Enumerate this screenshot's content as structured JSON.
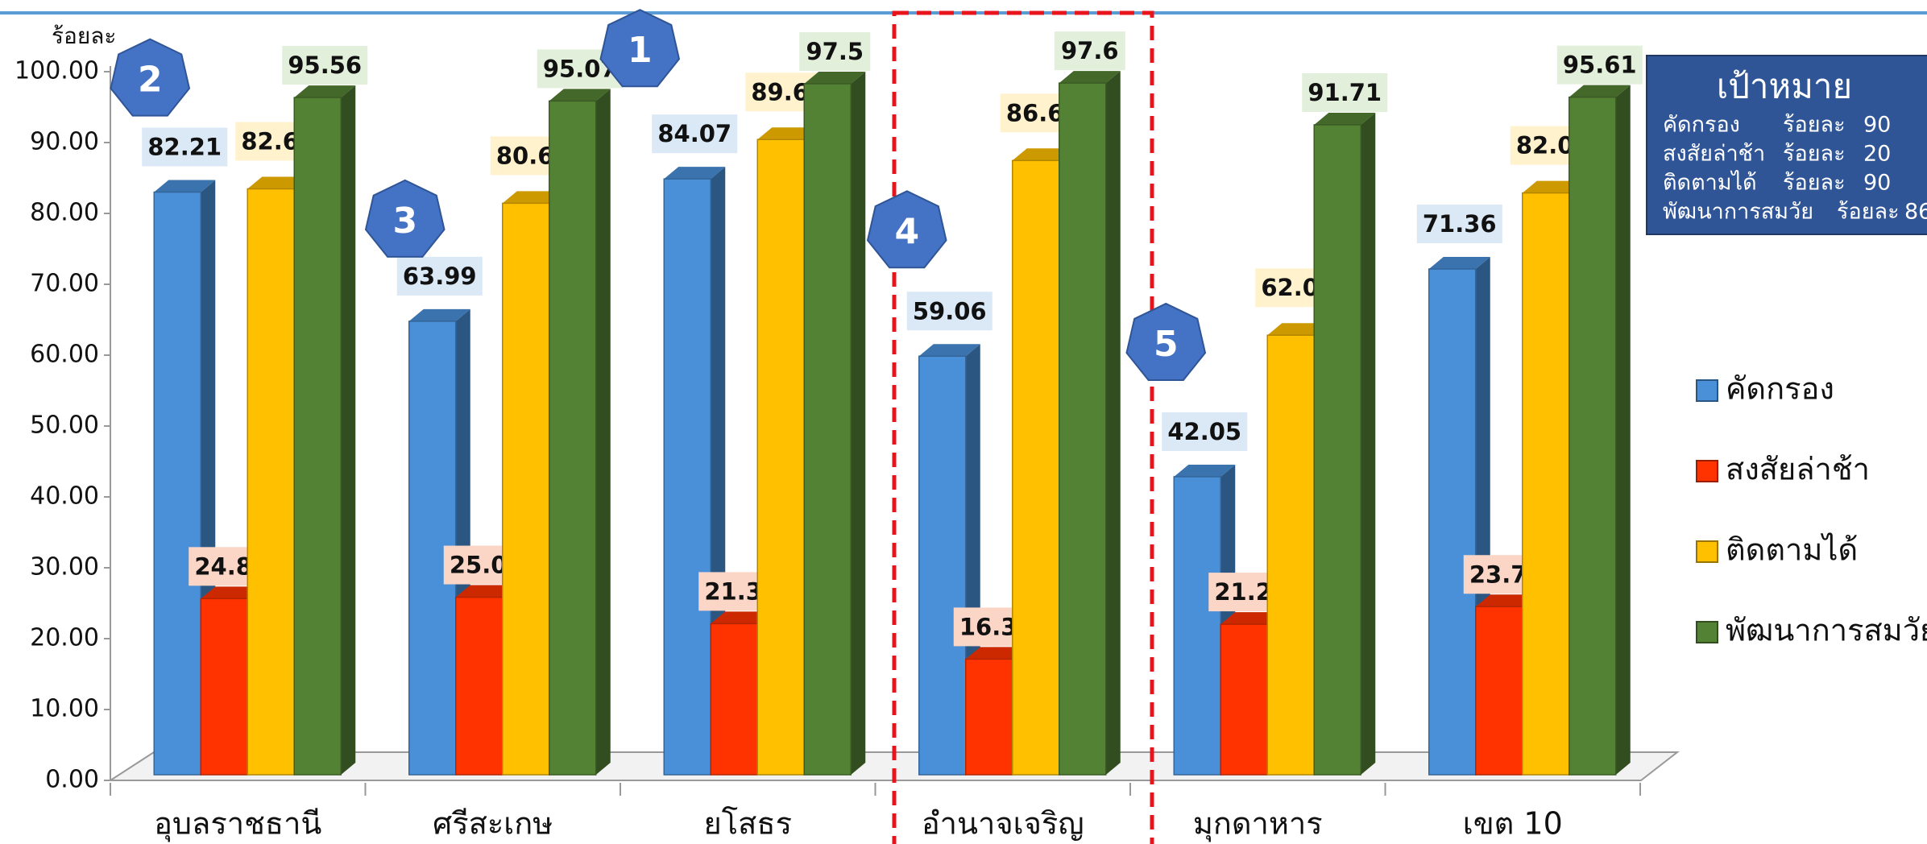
{
  "chart_data": {
    "type": "bar3d",
    "ylabel": "ร้อยละ",
    "categories": [
      "อุบลราชธานี",
      "ศรีสะเกษ",
      "ยโสธร",
      "อำนาจเจริญ",
      "มุกดาหาร",
      "เขต 10"
    ],
    "series": [
      {
        "name": "คัดกรอง",
        "color": "#4a90d9",
        "values": [
          82.21,
          63.99,
          84.07,
          59.06,
          42.05,
          71.36
        ]
      },
      {
        "name": "สงสัยล่าช้า",
        "color": "#ff3300",
        "values": [
          24.85,
          25.05,
          21.32,
          16.32,
          21.24,
          23.72
        ]
      },
      {
        "name": "ติดตามได้",
        "color": "#ffc000",
        "values": [
          82.67,
          80.64,
          89.63,
          86.67,
          62.02,
          82.09
        ]
      },
      {
        "name": "พัฒนาการสมวัย",
        "color": "#548235",
        "values": [
          95.56,
          95.07,
          97.5,
          97.6,
          91.71,
          95.61
        ]
      }
    ],
    "ylim": [
      0,
      100
    ],
    "yticks": [
      {
        "value": 0,
        "label": "0.00"
      },
      {
        "value": 10,
        "label": "10.00"
      },
      {
        "value": 20,
        "label": "20.00"
      },
      {
        "value": 30,
        "label": "30.00"
      },
      {
        "value": 40,
        "label": "40.00"
      },
      {
        "value": 50,
        "label": "50.00"
      },
      {
        "value": 60,
        "label": "60.00"
      },
      {
        "value": 70,
        "label": "70.00"
      },
      {
        "value": 80,
        "label": "80.00"
      },
      {
        "value": 90,
        "label": "90.00"
      },
      {
        "value": 100,
        "label": "100.00"
      }
    ],
    "ranks": [
      2,
      3,
      1,
      4,
      5,
      null
    ],
    "legend": "right",
    "target_box": {
      "title": "เป้าหมาย",
      "unit": "ร้อยละ",
      "items": [
        {
          "name": "คัดกรอง",
          "value": 90
        },
        {
          "name": "สงสัยล่าช้า",
          "value": 20
        },
        {
          "name": "ติดตามได้",
          "value": 90
        },
        {
          "name": "พัฒนาการสมวัย",
          "value": 86
        }
      ]
    }
  }
}
